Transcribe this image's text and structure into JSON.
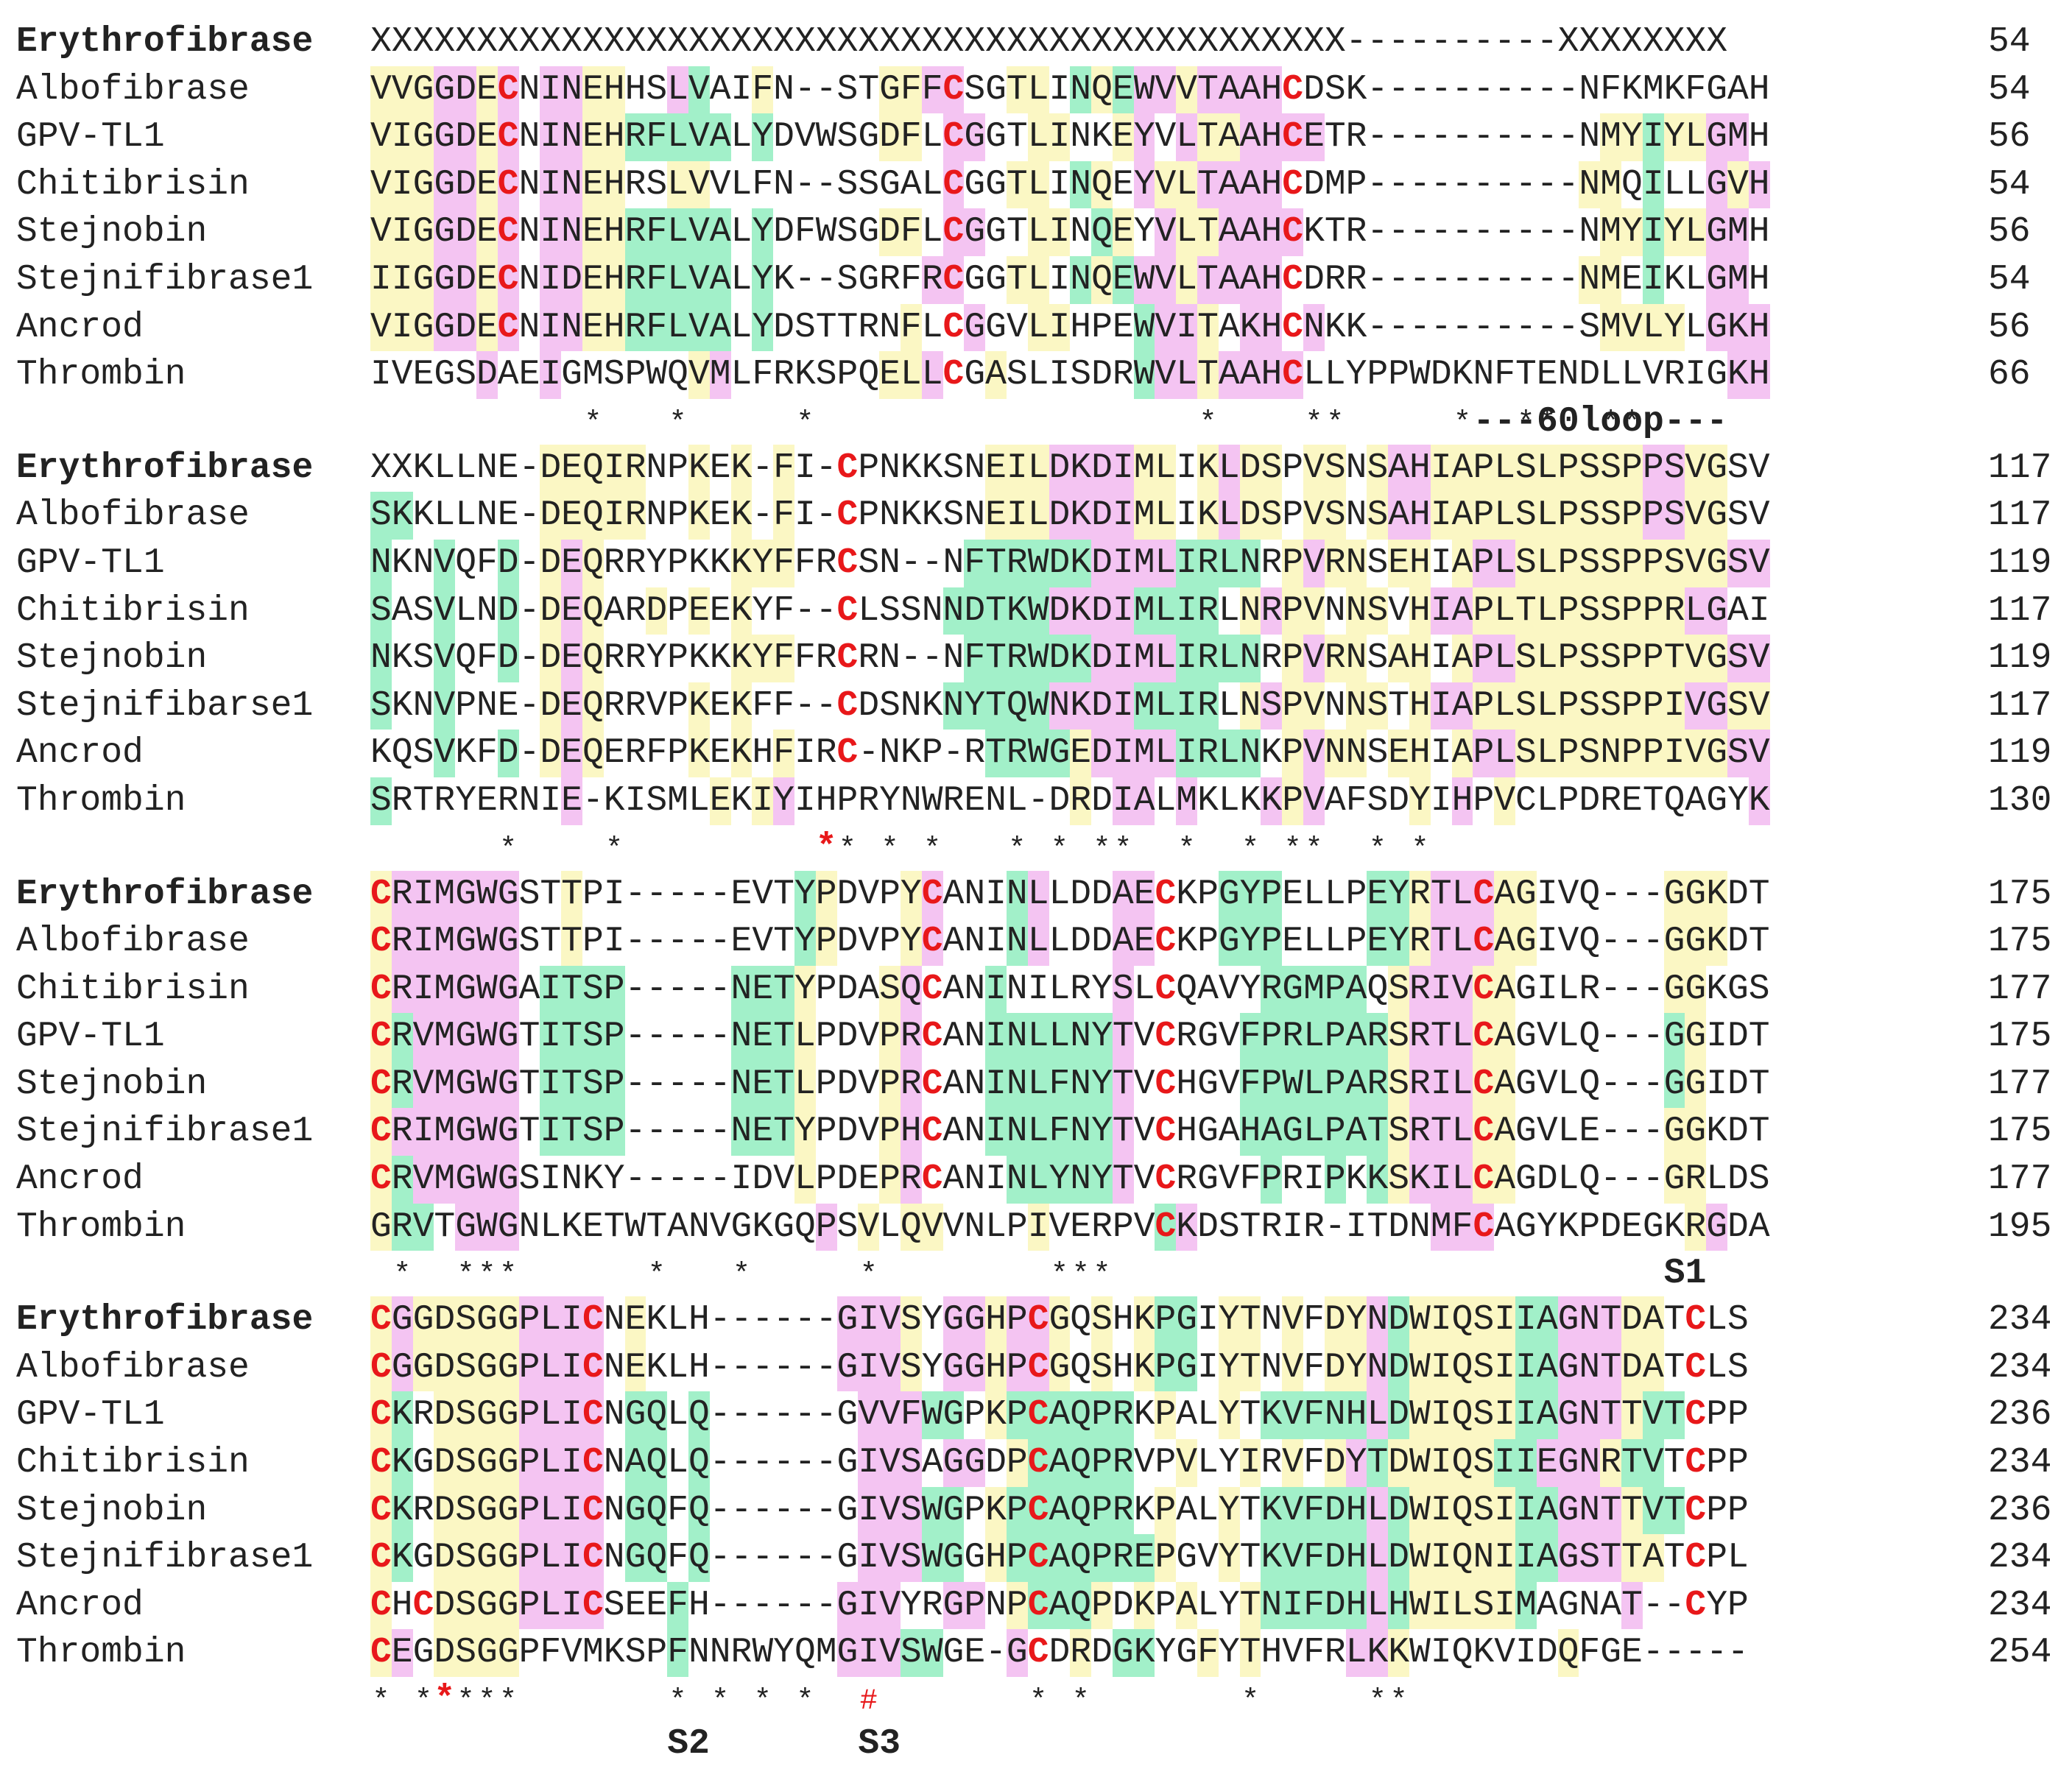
{
  "colors": {
    "yellow": "#fbf7c4",
    "green": "#a2f0c9",
    "magenta": "#f4c4f2",
    "red": "#e8181a"
  },
  "blocks": [
    {
      "rows": [
        {
          "name": "Erythrofibrase",
          "bold": true,
          "seq": "XXXXXXXXXXXXXXXXXXXXXXXXXXXXXXXXXXXXXXXXXXXXXX----------XXXXXXXX",
          "num": "54",
          "colors": "................................................................"
        },
        {
          "name": "Albofibrase",
          "seq": "VVGGDECNINEHHSLVAIFN--STGFFCSGTLINQEWVVTAAHCDSK----------NFKMKFGAH",
          "num": "54",
          "colors": "yyymmym.mmyy..mg..y.....yymm..yy.gygmmymmmm.......................yym"
        },
        {
          "name": "GPV-TL1",
          "seq": "VIGGDECNINEHRFLVALYDVWSGDFLCGGTLINKEYVLTAAHCETR----------NMYIYLGMH",
          "num": "56",
          "colors": "yyymmym.mmyyggggg.g.....yy.mm..yy..ym.myymmmm.............yygyymm"
        },
        {
          "name": "Chitibrisin",
          "seq": "VIGGDECNINEHRSLVVLFN--SSGALCGGTLINQEYVLTAAHCDMP----------NMQILLGVH",
          "num": "54",
          "colors": "yyymmym.mmyy..yy...........m..yy.gy.myymmmm..............yy.g..mym"
        },
        {
          "name": "Stejnobin",
          "seq": "VIGGDECNINEHRFLVALYDFWSGDFLCGGTLINQEYVLTAAHCKTR----------NMYIYLGMH",
          "num": "56",
          "colors": "yyymmym.mmyyggggg.g.....yy.mm..yy.gy.myymmmm..............yygyymm"
        },
        {
          "name": "Stejnifibrase1",
          "seq": "IIGGDECNIDEHRFLVALYK--SGRFRCGGTLINQEWVLTAAHCDRR----------NMEIKLGMH",
          "num": "54",
          "colors": "yyymmym.mmyyggggg.g.......mm..yy.gygmmymmmm..............yy.g..mm"
        },
        {
          "name": "Ancrod",
          "seq": "VIGGDECNINEHRFLVALYDSTTRNFLCGGVLIHPEWVITAKHCNKK----------SMVLYLGKH",
          "num": "56",
          "colors": "yyymmym.mmyyggggg.g......y..m..yy...gmmy.mm.m.............yyyy.mmm"
        },
        {
          "name": "Thrombin",
          "seq": "IVEGSDAEIGMSPWQVMLFRKSPQELLCGASLISDRWVLTAAHCLLYPPWDKNFTENDLLVRIGKH",
          "num": "66",
          "colors": ".....m..m......ym.......yym..y......gmmymmmm....................mm"
        }
      ],
      "cons": "          *   *     *                  *    **     *  **  **                 *  *",
      "redstars": [
        81
      ],
      "labels": [
        {
          "text": "---60loop---",
          "col": 52
        }
      ]
    },
    {
      "rows": [
        {
          "name": "Erythrofibrase",
          "bold": true,
          "seq": "XXKLLNE-DEQIRNPKEK-FI-CPNKKSNEILDKDIMLIKLDSPVSNSAHIAPLSLPSSPPSVGSV",
          "num": "117",
          "colors": "........yyyyy..y.y.y.........yyymmmmyy.ymyy.yy.ymmyyyyyyyyyymmyy"
        },
        {
          "name": "Albofibrase",
          "seq": "SKKLLNE-DEQIRNPKEK-FI-CPNKKSNEILDKDIMLIKLDSPVSNSAHIAPLSLPSSPPSVGSV",
          "num": "117",
          "colors": "gg......yyyyy..y.y.y.........yyymmmmyy.ymyy.yy.ymmyyyyyyyyyymmyy"
        },
        {
          "name": "GPV-TL1",
          "seq": "NKNVQFD-DEQRRYPKKKYFFRCSN--NFTRWDKDIMLIRLNRPVRNSEHIAPLSLPSSPPSVGSV",
          "num": "119",
          "colors": "g..g..g.ymy......yyy........ggggggmmmmgggg.ymyy.yy.ymmyyyyyyyyyymmyy"
        },
        {
          "name": "Chitibrisin",
          "seq": "SASVLND-DEQARDPEEKYF--CLSSNNDTKWDKDIMLIRLNRPVNNSVHIAPLTLPSSPPRLGAI",
          "num": "117",
          "colors": "g..g..g.ymy..y.y.y.........gggggmmmmgggg.ymyy.yy.ymmyyyyyyyyyymm.."
        },
        {
          "name": "Stejnobin",
          "seq": "NKSVQFD-DEQRRYPKKKYFFRCRN--NFTRWDKDIMLIRLNRPVRNSAHIAPLSLPSSPPTVGSV",
          "num": "119",
          "colors": "g..g..g.ymy......yyy........ggggggmmmmgggg.ymyy.yy.ymmyyyyyyyyyymmyy"
        },
        {
          "name": "Stejnifibarse1",
          "seq": "SKNVPNE-DEQRRVPKEKFF--CDSNKNYTQWNKDIMLIRLNSPVNNSTHIAPLSLPSSPPIVGSV",
          "num": "117",
          "colors": "g..g....ymy....y.y.........gggggmmmmgggg.ymyy.yy.ymmyyyyyyyyyymmyy"
        },
        {
          "name": "Ancrod",
          "seq": "KQSVKFD-DEQERFPKEKHFIRC-NKP-RTRWGEDIMLIRLNKPVNNSEHIAPLSLPSNPPIVGSV",
          "num": "119",
          "colors": "...g..g.ymy....y.y.y.........ggggymmmmgggg.ymyy.yy.ymmyyyyyyyyyymmyy"
        },
        {
          "name": "Thrombin",
          "seq": "SRTRYERNIE-KISMLEKIYIHPRYNWRENL-DRDIALMKLKKPVAFSDYIHPVCLPDRETQAGYK",
          "num": "130",
          "colors": "g........m......y.ym.............y.mm.m...mym....y.m.y...........m."
        }
      ],
      "cons": "     *           *          *  *  *    *  **  *  *  *  **    *",
      "consOffset": 0,
      "consCols": [
        6,
        11,
        21,
        22,
        24,
        26,
        30,
        32,
        34,
        35,
        38,
        41,
        43,
        44,
        47,
        49
      ],
      "redstars": [
        21
      ],
      "labels": []
    },
    {
      "rows": [
        {
          "name": "Erythrofibrase",
          "bold": true,
          "seq": "CRIMGWGSTTPI-----EVTYPDVPYCANINLLDDAECKPGYPELLPEYRTLCAGIVQ---GGKDT",
          "num": "175",
          "colors": "ymmmmmm..y..........gy...ym...gm...mm...ggg....ggymmmyy.....yyyy"
        },
        {
          "name": "Albofibrase",
          "seq": "CRIMGWGSTTPI-----EVTYPDVPYCANINLLDDAECKPGYPELLPEYRTLCAGIVQ---GGKDT",
          "num": "175",
          "colors": "ymmmmmm..y..........gy...ym...gm...mm...ggg....ggymmmyy.....yyyy"
        },
        {
          "name": "Chitibrisin",
          "seq": "CRIMGWGAITSP-----NETYPDASQCANINILRYSLCQAVYRGMPAQSRIVCAGILR---GGKGS",
          "num": "177",
          "colors": "ymmmmmm.gggg.....gggy...ym...g.....m......ggggg.ymmmyy.....yyyy"
        },
        {
          "name": "GPV-TL1",
          "seq": "CRVMGWGTITSP-----NETLPDVPRCANINLLNYTVCRGVFPRLPARSRTLCAGVLQ---GGIDT",
          "num": "175",
          "colors": "ygmmmmm.gggg.....gggy...ym...ggggggm.....gggggggymmmyy.....yggy"
        },
        {
          "name": "Stejnobin",
          "seq": "CRVMGWGTITSP-----NETLPDVPRCANINLFNYTVCHGVFPWLPARSRILCAGVLQ---GGIDT",
          "num": "177",
          "colors": "ygmmmmm.gggg.....gggy...ym...ggggggm.....gggggggymmmyy.....yggy"
        },
        {
          "name": "Stejnifibrase1",
          "seq": "CRIMGWGTITSP-----NETYPDVPHCANINLFNYTVCHGAHAGLPATSRTLCAGVLE---GGKDT",
          "num": "175",
          "colors": "ymmmmmm.gggg.....gggy...ym...ggggggm.....gggggggymmmyy.....yyyy"
        },
        {
          "name": "Ancrod",
          "seq": "CRVMGWGSINKY-----IDVLPDEPRCANINLYNYTVCRGVFPRIPKKSKILCAGDLQ---GRLDS",
          "num": "177",
          "colors": "ygmmmmm.............y...ym....gggggm......g..g.gymmmyy.....yyyy"
        },
        {
          "name": "Thrombin",
          "seq": "GRVTGWGNLKETWTANVGKGQPSVLQVVNLPIVERPVCKDSTRIR-ITDNMFCAGYKPDEGKRGDA",
          "num": "195",
          "colors": "ygg.mmm..............m.y.yy....y.....gm...........mmm.........ym"
        }
      ],
      "consCols": [
        1,
        4,
        5,
        6,
        13,
        17,
        23,
        32,
        33,
        34
      ],
      "cons": "",
      "redstars": [],
      "labels": [
        {
          "text": "S1",
          "col": 61
        }
      ]
    },
    {
      "rows": [
        {
          "name": "Erythrofibrase",
          "bold": true,
          "seq": "CGGDSGGPLICNEKLH------GIVSYGGHPCGQSHKPGIYTNVFDYNDWIQSIIAGNTDATCLS",
          "num": "234",
          "colors": "ymyyyyymmmm.y.........mmmy.mmymmy.y.ygg.yy.y.yymgyyyyyggmmmyy"
        },
        {
          "name": "Albofibrase",
          "seq": "CGGDSGGPLICNEKLH------GIVSYGGHPCGQSHKPGIYTNVFDYNDWIQSIIAGNTDATCLS",
          "num": "234",
          "colors": "ymyyyyymmmm.y.........mmmy.mmymmy.y.ygg.yy.y.yymgyyyyyggmmmyy"
        },
        {
          "name": "GPV-TL1",
          "seq": "CKRDSGGPLICNGQLQ------GVVFWGPKPCAQPRKPALYTKVFNHLDWIQSIIAGNTTVTCPP",
          "num": "236",
          "colors": "yg.yyyymmmm.gg.g.......mmmgg.ygggggg.y..y.gggggmgyyyyyggmmmygg"
        },
        {
          "name": "Chitibrisin",
          "seq": "CKGDSGGPLICNAQLQ------GIVSAGGDPCAQPRVPVLYIRVFDYTDWIQSIIEGNRTVTCPP",
          "num": "234",
          "colors": "yg.yyyymmmm.gg.g.......mmm.mm.yggggg..y..y.y.ymgyyyyyggmmmygg"
        },
        {
          "name": "Stejnobin",
          "seq": "CKRDSGGPLICNGQFQ------GIVSWGPKPCAQPRKPALYTKVFDHLDWIQSIIAGNTTVTCPP",
          "num": "236",
          "colors": "yg.yyyymmmm.gg.g.......mmmgg.ygggggg.y..y.gggggmgyyyyyggmmmygg"
        },
        {
          "name": "Stejnifibrase1",
          "seq": "CKGDSGGPLICNGQFQ------GIVSWGGHPCAQPREPGVYTKVFDHLDWIQNIIAGSTTATCPL",
          "num": "234",
          "colors": "yg.yyyymmmm.gg.g.......mmmgg.ygggggggy..y.gggggmgyyyyyggmmmyy"
        },
        {
          "name": "Ancrod",
          "seq": "CHCDSGGPLICSEEFH------GIVYRGPNPCAQPDKPALYTNIFDHLHWILSIMAGNAT--CYP",
          "num": "234",
          "colors": "y..yyyymmmm...g.......mmm..mm.ygggy.y.y..ygggggmgyyyyyg....mg"
        },
        {
          "name": "Thrombin",
          "seq": "CEGDSGGPFVMKSPFNNRWYQMGIVSWGE-GCDRDGKYGFYTHVFRLKKWIQKVIDQFGE-----",
          "num": "254",
          "colors": "ym.yyyy.......g.......mmmgg...m..y.gg..y.y....mmy.......y"
        }
      ],
      "consCols": [
        0,
        2,
        4,
        5,
        6,
        14,
        16,
        18,
        20,
        31,
        33,
        41,
        47,
        48
      ],
      "cons": "",
      "redstars": [
        3
      ],
      "hashCols": [
        23
      ],
      "labels": [],
      "bottomLabels": [
        {
          "text": "S2",
          "col": 14
        },
        {
          "text": "S3",
          "col": 23
        }
      ]
    }
  ]
}
